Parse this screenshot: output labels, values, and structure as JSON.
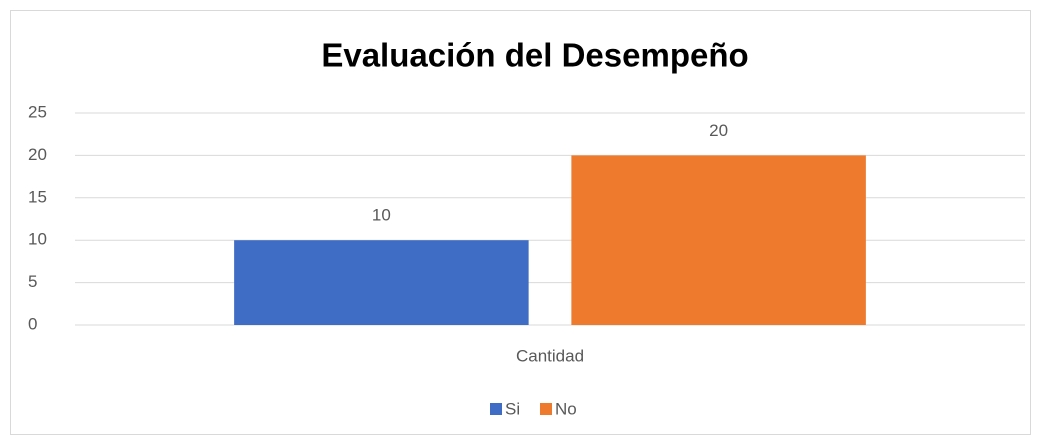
{
  "chart_data": {
    "type": "bar",
    "title": "Evaluación del Desempeño",
    "categories": [
      "Cantidad"
    ],
    "series": [
      {
        "name": "Si",
        "color": "#3f6cc4",
        "values": [
          10
        ]
      },
      {
        "name": "No",
        "color": "#ee7a2e",
        "values": [
          20
        ]
      }
    ],
    "ylim": [
      0,
      25
    ],
    "yticks": [
      0,
      5,
      10,
      15,
      20,
      25
    ],
    "grid": true,
    "legend": "bottom"
  }
}
